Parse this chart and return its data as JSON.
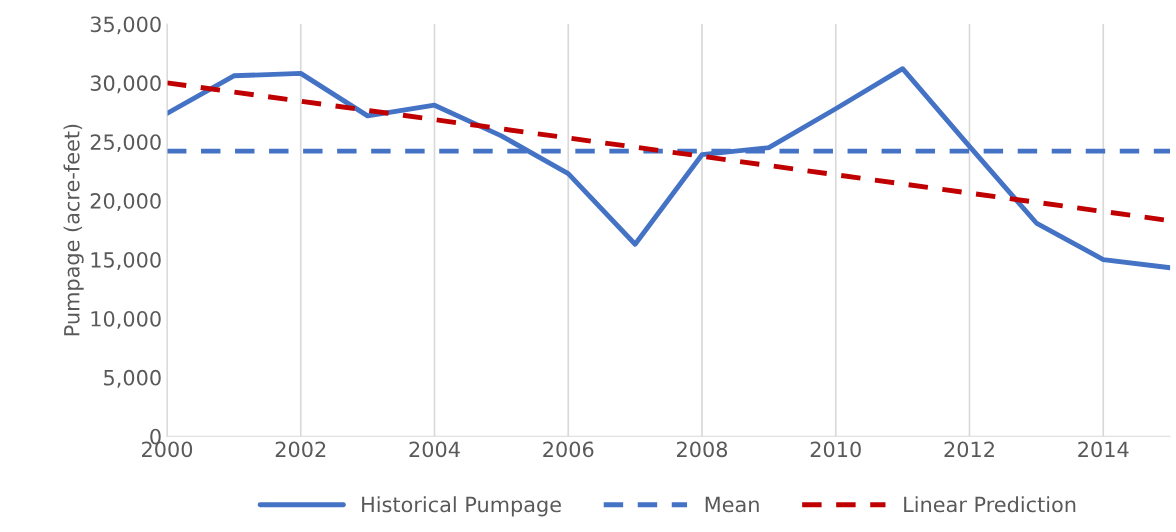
{
  "chart_data": {
    "type": "line",
    "ylabel": "Pumpage (acre-feet)",
    "series": [
      {
        "name": "Historical Pumpage",
        "color": "#4472c4",
        "line_style": "solid",
        "x": [
          2000,
          2001,
          2002,
          2003,
          2004,
          2005,
          2006,
          2007,
          2008,
          2009,
          2010,
          2011,
          2012,
          2013,
          2014,
          2015
        ],
        "values": [
          27400,
          30600,
          30800,
          27200,
          28100,
          25500,
          22300,
          16300,
          23900,
          24500,
          27800,
          31200,
          24600,
          18100,
          15000,
          14300
        ]
      },
      {
        "name": "Mean",
        "color": "#4472c4",
        "line_style": "dashed",
        "x": [
          2000,
          2015
        ],
        "values": [
          24200,
          24200
        ]
      },
      {
        "name": "Linear Prediction",
        "color": "#c00000",
        "line_style": "dashed",
        "x": [
          2000,
          2015
        ],
        "values": [
          30000,
          18300
        ]
      }
    ],
    "xlim": [
      2000,
      2015
    ],
    "xticks": [
      2000,
      2002,
      2004,
      2006,
      2008,
      2010,
      2012,
      2014
    ],
    "ylim": [
      0,
      35000
    ],
    "yticks": [
      {
        "value": 0,
        "label": "0"
      },
      {
        "value": 5000,
        "label": "5,000"
      },
      {
        "value": 10000,
        "label": "10,000"
      },
      {
        "value": 15000,
        "label": "15,000"
      },
      {
        "value": 20000,
        "label": "20,000"
      },
      {
        "value": 25000,
        "label": "25,000"
      },
      {
        "value": 30000,
        "label": "30,000"
      },
      {
        "value": 35000,
        "label": "35,000"
      }
    ],
    "grid": "x",
    "legend": "bottom",
    "marker": "none"
  }
}
